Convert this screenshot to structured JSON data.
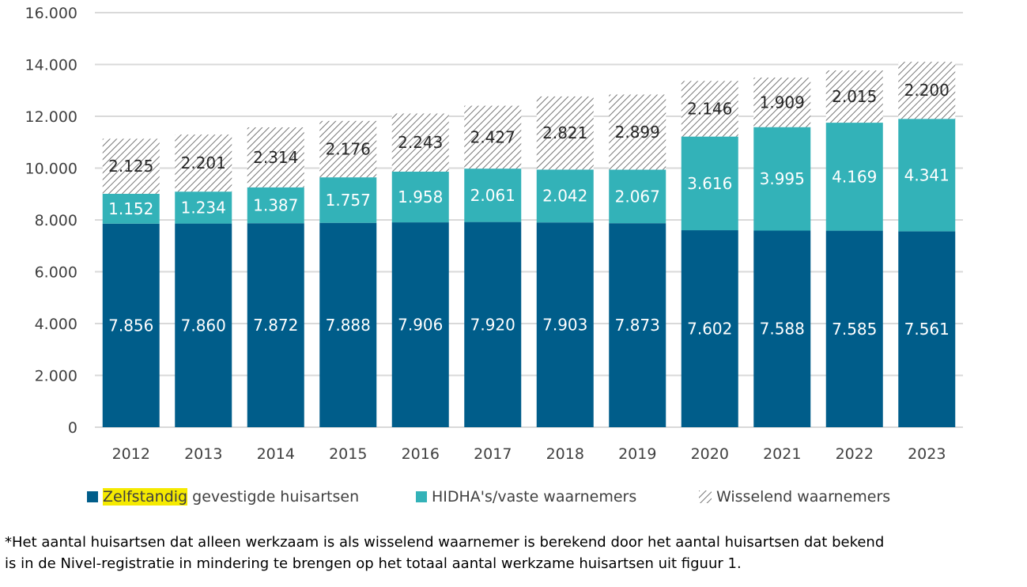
{
  "chart_data": {
    "type": "bar",
    "stacked": true,
    "categories": [
      "2012",
      "2013",
      "2014",
      "2015",
      "2016",
      "2017",
      "2018",
      "2019",
      "2020",
      "2021",
      "2022",
      "2023"
    ],
    "series": [
      {
        "name": "Zelfstandig gevestigde huisartsen",
        "color": "#005d8a",
        "values": [
          7856,
          7860,
          7872,
          7888,
          7906,
          7920,
          7903,
          7873,
          7602,
          7588,
          7585,
          7561
        ],
        "labels": [
          "7.856",
          "7.860",
          "7.872",
          "7.888",
          "7.906",
          "7.920",
          "7.903",
          "7.873",
          "7.602",
          "7.588",
          "7.585",
          "7.561"
        ]
      },
      {
        "name": "HIDHA's/vaste waarnemers",
        "color": "#33b2b8",
        "values": [
          1152,
          1234,
          1387,
          1757,
          1958,
          2061,
          2042,
          2067,
          3616,
          3995,
          4169,
          4341
        ],
        "labels": [
          "1.152",
          "1.234",
          "1.387",
          "1.757",
          "1.958",
          "2.061",
          "2.042",
          "2.067",
          "3.616",
          "3.995",
          "4.169",
          "4.341"
        ]
      },
      {
        "name": "Wisselend waarnemers",
        "color": "hatched",
        "values": [
          2125,
          2201,
          2314,
          2176,
          2243,
          2427,
          2821,
          2899,
          2146,
          1909,
          2015,
          2200
        ],
        "labels": [
          "2.125",
          "2.201",
          "2.314",
          "2.176",
          "2.243",
          "2.427",
          "2.821",
          "2.899",
          "2.146",
          "1.909",
          "2.015",
          "2.200"
        ]
      }
    ],
    "ylim": [
      0,
      16000
    ],
    "yticks": [
      "0",
      "2.000",
      "4.000",
      "6.000",
      "8.000",
      "10.000",
      "12.000",
      "14.000",
      "16.000"
    ],
    "grid": true,
    "legend_position": "bottom"
  },
  "legend": {
    "item1_highlighted": "Zelfstandig",
    "item1_rest": " gevestigde huisartsen",
    "item2": "HIDHA's/vaste waarnemers",
    "item3": "Wisselend waarnemers"
  },
  "footnote": {
    "line1": "*Het aantal huisartsen dat alleen werkzaam is als wisselend waarnemer is berekend door het aantal huisartsen dat bekend",
    "line2": "is in de Nivel-registratie in mindering te brengen op het totaal aantal werkzame huisartsen uit figuur 1."
  }
}
